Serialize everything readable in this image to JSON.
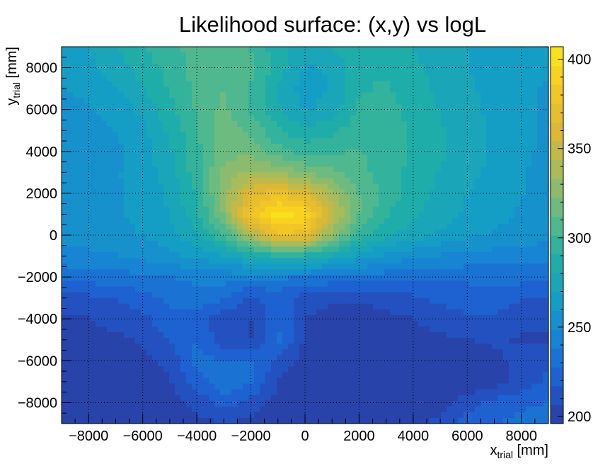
{
  "chart_data": {
    "type": "heatmap",
    "title": "Likelihood surface: (x,y) vs logL",
    "xlabel": {
      "main": "x",
      "sub": "trial",
      "unit": " [mm]"
    },
    "ylabel": {
      "main": "y",
      "sub": "trial",
      "unit": " [mm]"
    },
    "xlim": [
      -9000,
      9000
    ],
    "ylim": [
      -9000,
      9000
    ],
    "zlim": [
      196,
      407
    ],
    "grid": true,
    "x_ticks": [
      -8000,
      -6000,
      -4000,
      -2000,
      0,
      2000,
      4000,
      6000,
      8000
    ],
    "y_ticks": [
      -8000,
      -6000,
      -4000,
      -2000,
      0,
      2000,
      4000,
      6000,
      8000
    ],
    "x_tick_labels": [
      "−8000",
      "−6000",
      "−4000",
      "−2000",
      "0",
      "2000",
      "4000",
      "6000",
      "8000"
    ],
    "y_tick_labels": [
      "−8000",
      "−6000",
      "−4000",
      "−2000",
      "0",
      "2000",
      "4000",
      "6000",
      "8000"
    ],
    "colorbar": {
      "ticks": [
        200,
        250,
        300,
        350,
        400
      ],
      "tick_labels": [
        "200",
        "250",
        "300",
        "350",
        "400"
      ],
      "levels": 20
    },
    "colormap": [
      "#2a3c9e",
      "#1f5cd1",
      "#1783d4",
      "#15a0c4",
      "#21b0a4",
      "#62bb87",
      "#a6bb5d",
      "#dcb835",
      "#f5c824",
      "#fae916"
    ],
    "peak": {
      "x": -300,
      "y": 700,
      "logL": 407
    },
    "x_samples": [
      -9000,
      -8000,
      -7000,
      -6000,
      -5000,
      -4000,
      -3000,
      -2000,
      -1000,
      0,
      1000,
      2000,
      3000,
      4000,
      5000,
      6000,
      7000,
      8000,
      9000
    ],
    "y_samples": [
      9000,
      8000,
      7000,
      6000,
      5000,
      4000,
      3000,
      2000,
      1000,
      0,
      -1000,
      -2000,
      -3000,
      -4000,
      -5000,
      -6000,
      -7000,
      -8000,
      -9000
    ],
    "z": [
      [
        260,
        270,
        280,
        290,
        300,
        305,
        310,
        300,
        285,
        275,
        280,
        290,
        285,
        280,
        275,
        270,
        265,
        262,
        260
      ],
      [
        262,
        268,
        275,
        285,
        295,
        305,
        310,
        305,
        285,
        268,
        272,
        290,
        290,
        283,
        276,
        270,
        266,
        262,
        260
      ],
      [
        258,
        263,
        270,
        280,
        292,
        305,
        312,
        300,
        280,
        265,
        270,
        290,
        292,
        285,
        278,
        272,
        266,
        262,
        258
      ],
      [
        255,
        258,
        263,
        272,
        288,
        303,
        315,
        300,
        282,
        268,
        275,
        292,
        295,
        288,
        280,
        273,
        267,
        262,
        258
      ],
      [
        252,
        255,
        260,
        268,
        282,
        300,
        318,
        310,
        292,
        283,
        288,
        298,
        295,
        290,
        282,
        274,
        268,
        262,
        258
      ],
      [
        250,
        253,
        257,
        265,
        278,
        298,
        320,
        318,
        305,
        298,
        300,
        302,
        296,
        290,
        283,
        275,
        268,
        262,
        256
      ],
      [
        252,
        254,
        258,
        265,
        275,
        298,
        325,
        335,
        330,
        322,
        315,
        305,
        295,
        288,
        280,
        274,
        266,
        260,
        255
      ],
      [
        255,
        256,
        258,
        263,
        272,
        292,
        330,
        362,
        372,
        360,
        335,
        312,
        298,
        285,
        278,
        270,
        265,
        260,
        255
      ],
      [
        256,
        257,
        258,
        262,
        270,
        288,
        325,
        378,
        402,
        395,
        350,
        312,
        292,
        282,
        275,
        268,
        263,
        258,
        254
      ],
      [
        252,
        254,
        256,
        260,
        266,
        278,
        300,
        340,
        375,
        370,
        328,
        298,
        282,
        275,
        268,
        262,
        258,
        255,
        252
      ],
      [
        244,
        246,
        248,
        252,
        256,
        262,
        270,
        282,
        290,
        288,
        278,
        266,
        258,
        252,
        248,
        246,
        244,
        243,
        242
      ],
      [
        232,
        233,
        234,
        236,
        238,
        240,
        242,
        240,
        240,
        238,
        236,
        234,
        232,
        230,
        230,
        230,
        232,
        232,
        232
      ],
      [
        212,
        214,
        218,
        224,
        230,
        236,
        230,
        215,
        222,
        212,
        208,
        208,
        210,
        215,
        220,
        222,
        222,
        218,
        216
      ],
      [
        205,
        206,
        210,
        214,
        225,
        222,
        210,
        206,
        228,
        206,
        202,
        202,
        204,
        206,
        212,
        215,
        215,
        210,
        208
      ],
      [
        203,
        204,
        204,
        208,
        218,
        228,
        210,
        206,
        230,
        204,
        200,
        199,
        200,
        202,
        204,
        206,
        208,
        205,
        205
      ],
      [
        202,
        202,
        202,
        204,
        210,
        232,
        228,
        230,
        214,
        202,
        199,
        198,
        198,
        199,
        200,
        201,
        204,
        210,
        214
      ],
      [
        201,
        201,
        201,
        202,
        205,
        222,
        238,
        230,
        206,
        200,
        198,
        197,
        197,
        198,
        199,
        199,
        202,
        210,
        220
      ],
      [
        200,
        200,
        200,
        201,
        203,
        210,
        222,
        212,
        202,
        199,
        197,
        196,
        196,
        197,
        199,
        212,
        220,
        226,
        228
      ],
      [
        199,
        199,
        199,
        200,
        201,
        203,
        206,
        204,
        200,
        198,
        197,
        196,
        196,
        198,
        212,
        222,
        228,
        230,
        232
      ]
    ]
  }
}
